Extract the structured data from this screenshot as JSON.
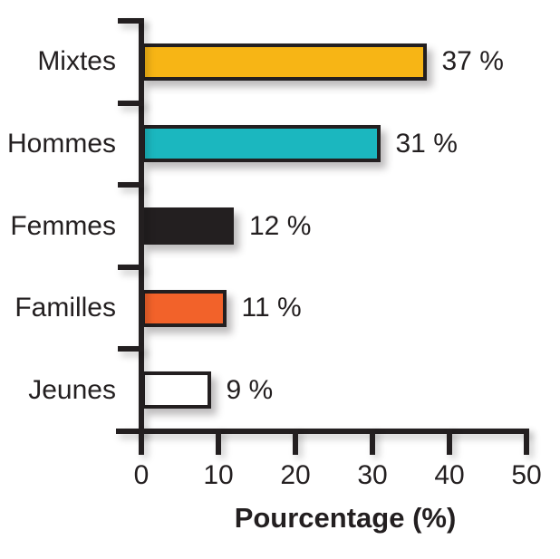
{
  "chart_data": {
    "type": "bar",
    "orientation": "horizontal",
    "title": "",
    "xlabel": "Pourcentage (%)",
    "ylabel": "",
    "categories": [
      "Mixtes",
      "Hommes",
      "Femmes",
      "Familles",
      "Jeunes"
    ],
    "values": [
      37,
      31,
      12,
      11,
      9
    ],
    "value_labels": [
      "37 %",
      "31 %",
      "12 %",
      "11 %",
      "9 %"
    ],
    "bar_colors": [
      "#F7B515",
      "#1BB7BF",
      "#231F20",
      "#F2622A",
      "#FFFFFF"
    ],
    "x_ticks": [
      0,
      10,
      20,
      30,
      40,
      50
    ],
    "x_tick_labels": [
      "0",
      "10",
      "20",
      "30",
      "40",
      "50"
    ],
    "xlim": [
      0,
      50
    ],
    "grid": false,
    "legend": false,
    "axis_color": "#231F20",
    "text_color": "#231F20",
    "background_color": "#FFFFFF"
  }
}
